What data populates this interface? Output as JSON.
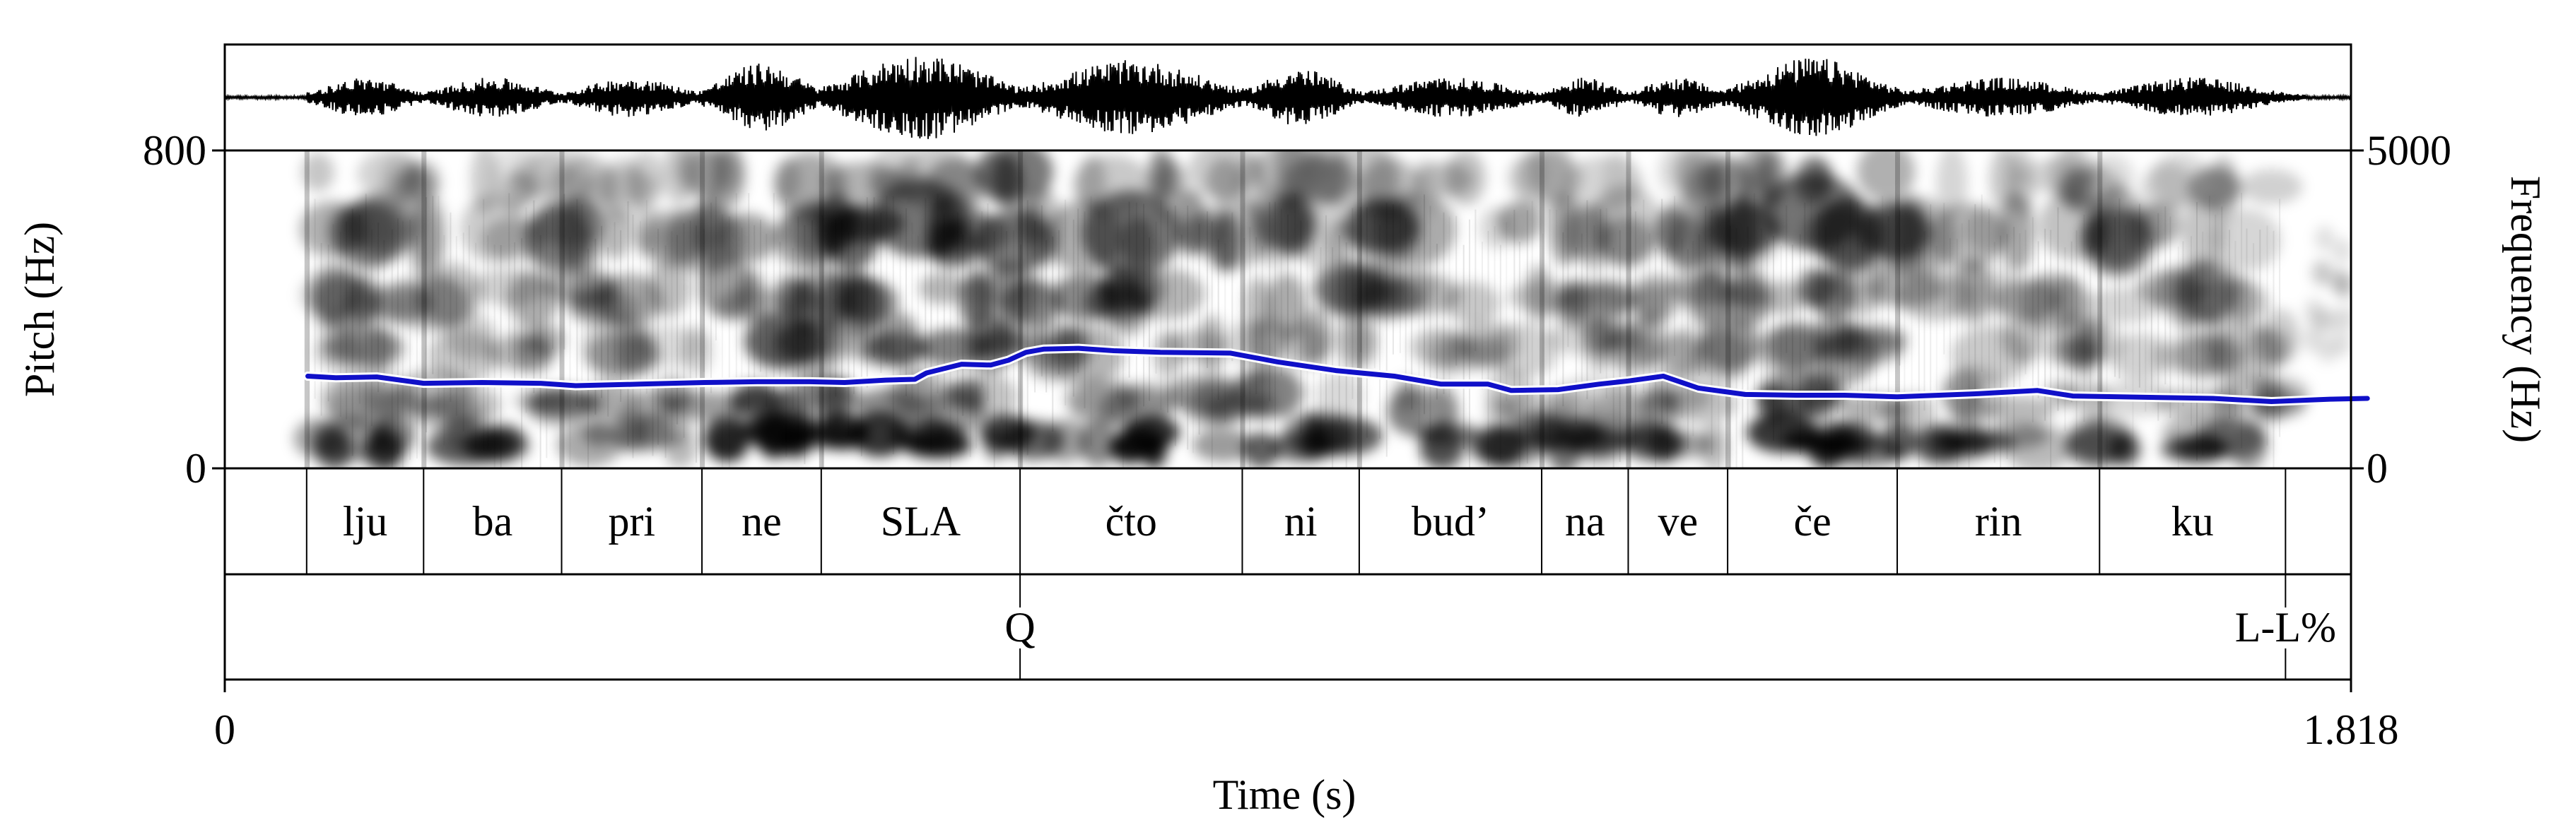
{
  "figure": {
    "left_axis_label": "Pitch (Hz)",
    "right_axis_label": "Frequency (Hz)",
    "x_axis_label": "Time (s)",
    "pitch_max_label": "800",
    "pitch_min_label": "0",
    "freq_max_label": "5000",
    "freq_min_label": "0",
    "time_start_label": "0",
    "time_end_label": "1.818"
  },
  "colors": {
    "pitch_track": "#1010c8",
    "spectrogram_ink": "#000000",
    "waveform": "#000000"
  },
  "chart_data": {
    "type": "line",
    "title": "",
    "xlabel": "Time (s)",
    "ylabel": "Pitch (Hz)",
    "xlim": [
      0,
      1.818
    ],
    "ylim": [
      0,
      800
    ],
    "right_axis": {
      "label": "Frequency (Hz)",
      "range": [
        0,
        5000
      ]
    },
    "series": [
      {
        "points": [
          [
            0.071,
            232
          ],
          [
            0.095,
            228
          ],
          [
            0.13,
            230
          ],
          [
            0.17,
            214
          ],
          [
            0.22,
            216
          ],
          [
            0.27,
            214
          ],
          [
            0.3,
            208
          ],
          [
            0.355,
            212
          ],
          [
            0.41,
            216
          ],
          [
            0.455,
            218
          ],
          [
            0.5,
            218
          ],
          [
            0.53,
            216
          ],
          [
            0.565,
            222
          ],
          [
            0.59,
            224
          ],
          [
            0.6,
            240
          ],
          [
            0.63,
            262
          ],
          [
            0.655,
            260
          ],
          [
            0.67,
            272
          ],
          [
            0.685,
            292
          ],
          [
            0.7,
            300
          ],
          [
            0.73,
            302
          ],
          [
            0.76,
            296
          ],
          [
            0.8,
            292
          ],
          [
            0.86,
            290
          ],
          [
            0.9,
            268
          ],
          [
            0.95,
            246
          ],
          [
            1.0,
            232
          ],
          [
            1.04,
            212
          ],
          [
            1.08,
            212
          ],
          [
            1.1,
            196
          ],
          [
            1.14,
            198
          ],
          [
            1.175,
            212
          ],
          [
            1.2,
            220
          ],
          [
            1.23,
            232
          ],
          [
            1.26,
            202
          ],
          [
            1.3,
            186
          ],
          [
            1.345,
            184
          ],
          [
            1.385,
            184
          ],
          [
            1.43,
            180
          ],
          [
            1.5,
            188
          ],
          [
            1.55,
            196
          ],
          [
            1.58,
            182
          ],
          [
            1.62,
            180
          ],
          [
            1.7,
            176
          ],
          [
            1.75,
            168
          ],
          [
            1.8,
            174
          ],
          [
            1.832,
            176
          ]
        ]
      }
    ],
    "grid": false,
    "legend": "none"
  },
  "tiers": {
    "syllables": [
      {
        "start": 0.07,
        "end": 0.17,
        "label": "lju"
      },
      {
        "start": 0.17,
        "end": 0.288,
        "label": "ba"
      },
      {
        "start": 0.288,
        "end": 0.408,
        "label": "pri"
      },
      {
        "start": 0.408,
        "end": 0.51,
        "label": "ne"
      },
      {
        "start": 0.51,
        "end": 0.68,
        "label": "SLA"
      },
      {
        "start": 0.68,
        "end": 0.87,
        "label": "čto"
      },
      {
        "start": 0.87,
        "end": 0.97,
        "label": "ni"
      },
      {
        "start": 0.97,
        "end": 1.126,
        "label": "bud’"
      },
      {
        "start": 1.126,
        "end": 1.2,
        "label": "na"
      },
      {
        "start": 1.2,
        "end": 1.285,
        "label": "ve"
      },
      {
        "start": 1.285,
        "end": 1.43,
        "label": "če"
      },
      {
        "start": 1.43,
        "end": 1.603,
        "label": "rin"
      },
      {
        "start": 1.603,
        "end": 1.762,
        "label": "ku"
      }
    ],
    "tones": [
      {
        "time": 0.68,
        "label": "Q"
      },
      {
        "time": 1.762,
        "label": "L-L%"
      }
    ]
  }
}
